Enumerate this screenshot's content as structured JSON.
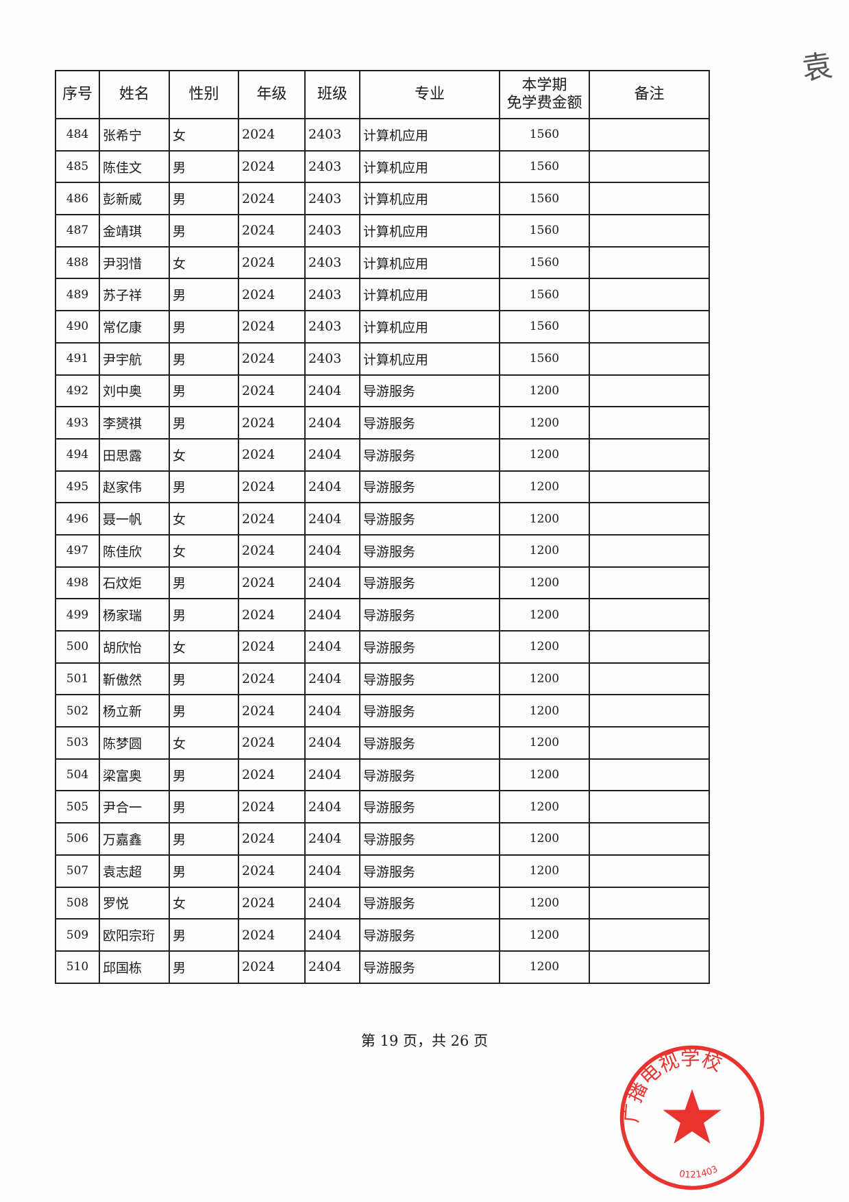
{
  "headers": [
    "序号",
    "姓名",
    "性别",
    "年级",
    "班级",
    "专业",
    "本学期\n免学费金额",
    "备注"
  ],
  "header_amount_lines": [
    "本学期",
    "免学费金额"
  ],
  "rows": [
    [
      "484",
      "张希宁",
      "女",
      "2024",
      "2403",
      "计算机应用",
      "1560",
      ""
    ],
    [
      "485",
      "陈佳文",
      "男",
      "2024",
      "2403",
      "计算机应用",
      "1560",
      ""
    ],
    [
      "486",
      "彭新威",
      "男",
      "2024",
      "2403",
      "计算机应用",
      "1560",
      ""
    ],
    [
      "487",
      "金靖琪",
      "男",
      "2024",
      "2403",
      "计算机应用",
      "1560",
      ""
    ],
    [
      "488",
      "尹羽惜",
      "女",
      "2024",
      "2403",
      "计算机应用",
      "1560",
      ""
    ],
    [
      "489",
      "苏子祥",
      "男",
      "2024",
      "2403",
      "计算机应用",
      "1560",
      ""
    ],
    [
      "490",
      "常亿康",
      "男",
      "2024",
      "2403",
      "计算机应用",
      "1560",
      ""
    ],
    [
      "491",
      "尹宇航",
      "男",
      "2024",
      "2403",
      "计算机应用",
      "1560",
      ""
    ],
    [
      "492",
      "刘中奥",
      "男",
      "2024",
      "2404",
      "导游服务",
      "1200",
      ""
    ],
    [
      "493",
      "李赟祺",
      "男",
      "2024",
      "2404",
      "导游服务",
      "1200",
      ""
    ],
    [
      "494",
      "田思露",
      "女",
      "2024",
      "2404",
      "导游服务",
      "1200",
      ""
    ],
    [
      "495",
      "赵家伟",
      "男",
      "2024",
      "2404",
      "导游服务",
      "1200",
      ""
    ],
    [
      "496",
      "聂一帆",
      "女",
      "2024",
      "2404",
      "导游服务",
      "1200",
      ""
    ],
    [
      "497",
      "陈佳欣",
      "女",
      "2024",
      "2404",
      "导游服务",
      "1200",
      ""
    ],
    [
      "498",
      "石炆炬",
      "男",
      "2024",
      "2404",
      "导游服务",
      "1200",
      ""
    ],
    [
      "499",
      "杨家瑞",
      "男",
      "2024",
      "2404",
      "导游服务",
      "1200",
      ""
    ],
    [
      "500",
      "胡欣怡",
      "女",
      "2024",
      "2404",
      "导游服务",
      "1200",
      ""
    ],
    [
      "501",
      "靳傲然",
      "男",
      "2024",
      "2404",
      "导游服务",
      "1200",
      ""
    ],
    [
      "502",
      "杨立新",
      "男",
      "2024",
      "2404",
      "导游服务",
      "1200",
      ""
    ],
    [
      "503",
      "陈梦圆",
      "女",
      "2024",
      "2404",
      "导游服务",
      "1200",
      ""
    ],
    [
      "504",
      "梁富奥",
      "男",
      "2024",
      "2404",
      "导游服务",
      "1200",
      ""
    ],
    [
      "505",
      "尹合一",
      "男",
      "2024",
      "2404",
      "导游服务",
      "1200",
      ""
    ],
    [
      "506",
      "万嘉鑫",
      "男",
      "2024",
      "2404",
      "导游服务",
      "1200",
      ""
    ],
    [
      "507",
      "袁志超",
      "男",
      "2024",
      "2404",
      "导游服务",
      "1200",
      ""
    ],
    [
      "508",
      "罗悦",
      "女",
      "2024",
      "2404",
      "导游服务",
      "1200",
      ""
    ],
    [
      "509",
      "欧阳宗珩",
      "男",
      "2024",
      "2404",
      "导游服务",
      "1200",
      ""
    ],
    [
      "510",
      "邱国栋",
      "男",
      "2024",
      "2404",
      "导游服务",
      "1200",
      ""
    ]
  ],
  "footer": "第 19 页，共 26 页",
  "handwritten_note": "袁",
  "seal": {
    "text": "广播电视学校",
    "code": "0121403",
    "color": "#e8332f"
  }
}
